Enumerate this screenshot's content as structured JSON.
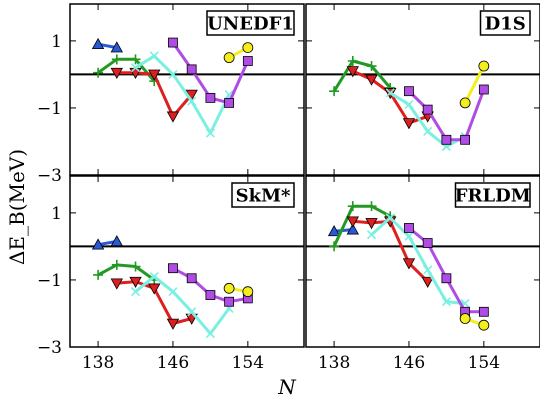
{
  "chart_data": {
    "type": "line",
    "ylabel": "ΔE_B(MeV)",
    "xlabel": "N",
    "xlim": [
      135,
      160
    ],
    "ylim": [
      -3,
      2.1
    ],
    "x_ticks": [
      138,
      146,
      154
    ],
    "x_tick_labels": [
      "138",
      "146",
      "154"
    ],
    "y_ticks": [
      1,
      -1,
      -3
    ],
    "y_tick_labels": [
      "1",
      "−1",
      "−3"
    ],
    "reference_line": 0,
    "series_styles": [
      {
        "color": "#2b59d6",
        "marker": "triangle-up"
      },
      {
        "color": "#229922",
        "marker": "plus"
      },
      {
        "color": "#dd1f1f",
        "marker": "triangle-down"
      },
      {
        "color": "#7af0e0",
        "marker": "cross"
      },
      {
        "color": "#b04ce6",
        "marker": "square"
      },
      {
        "color": "#f3ee1c",
        "marker": "circle"
      }
    ],
    "panels": [
      {
        "label": "UNEDF1",
        "series": [
          {
            "points": [
              [
                138,
                0.9
              ],
              [
                140,
                0.8
              ]
            ]
          },
          {
            "points": [
              [
                138,
                0.05
              ],
              [
                140,
                0.45
              ],
              [
                142,
                0.45
              ],
              [
                144,
                -0.2
              ]
            ]
          },
          {
            "points": [
              [
                140,
                0.05
              ],
              [
                142,
                0.05
              ],
              [
                144,
                0.0
              ],
              [
                146,
                -1.25
              ],
              [
                148,
                -0.6
              ]
            ]
          },
          {
            "points": [
              [
                142,
                0.2
              ],
              [
                144,
                0.55
              ],
              [
                146,
                0.0
              ],
              [
                148,
                -0.8
              ],
              [
                150,
                -1.75
              ],
              [
                152,
                -0.6
              ]
            ]
          },
          {
            "points": [
              [
                146,
                0.95
              ],
              [
                148,
                0.15
              ],
              [
                150,
                -0.7
              ],
              [
                152,
                -0.85
              ],
              [
                154,
                0.4
              ]
            ]
          },
          {
            "points": [
              [
                152,
                0.5
              ],
              [
                154,
                0.8
              ]
            ]
          }
        ]
      },
      {
        "label": "D1S",
        "series": [
          {
            "points": []
          },
          {
            "points": [
              [
                138,
                -0.5
              ],
              [
                140,
                0.4
              ],
              [
                142,
                0.25
              ],
              [
                144,
                -0.4
              ]
            ]
          },
          {
            "points": [
              [
                140,
                0.1
              ],
              [
                142,
                -0.15
              ],
              [
                144,
                -0.55
              ],
              [
                146,
                -1.45
              ],
              [
                148,
                -1.25
              ]
            ]
          },
          {
            "points": [
              [
                144,
                -0.55
              ],
              [
                146,
                -0.9
              ],
              [
                148,
                -1.7
              ],
              [
                150,
                -2.15
              ],
              [
                152,
                -1.85
              ]
            ]
          },
          {
            "points": [
              [
                146,
                -0.5
              ],
              [
                148,
                -1.05
              ],
              [
                150,
                -1.95
              ],
              [
                152,
                -1.95
              ],
              [
                154,
                -0.45
              ]
            ]
          },
          {
            "points": [
              [
                152,
                -0.85
              ],
              [
                154,
                0.25
              ]
            ]
          }
        ]
      },
      {
        "label": "SkM*",
        "series": [
          {
            "points": [
              [
                138,
                0.05
              ],
              [
                140,
                0.15
              ]
            ]
          },
          {
            "points": [
              [
                138,
                -0.85
              ],
              [
                140,
                -0.55
              ],
              [
                142,
                -0.6
              ],
              [
                144,
                -1.0
              ]
            ]
          },
          {
            "points": [
              [
                140,
                -1.1
              ],
              [
                142,
                -1.05
              ],
              [
                144,
                -1.25
              ],
              [
                146,
                -2.3
              ],
              [
                148,
                -2.15
              ]
            ]
          },
          {
            "points": [
              [
                142,
                -1.35
              ],
              [
                144,
                -0.9
              ],
              [
                146,
                -1.35
              ],
              [
                148,
                -1.95
              ],
              [
                150,
                -2.6
              ],
              [
                152,
                -1.85
              ]
            ]
          },
          {
            "points": [
              [
                146,
                -0.65
              ],
              [
                148,
                -0.95
              ],
              [
                150,
                -1.45
              ],
              [
                152,
                -1.65
              ],
              [
                154,
                -1.55
              ]
            ]
          },
          {
            "points": [
              [
                152,
                -1.25
              ],
              [
                154,
                -1.35
              ]
            ]
          }
        ]
      },
      {
        "label": "FRLDM",
        "series": [
          {
            "points": [
              [
                138,
                0.45
              ],
              [
                140,
                0.5
              ]
            ]
          },
          {
            "points": [
              [
                138,
                0.0
              ],
              [
                140,
                1.2
              ],
              [
                142,
                1.2
              ],
              [
                144,
                0.9
              ]
            ]
          },
          {
            "points": [
              [
                140,
                0.75
              ],
              [
                142,
                0.7
              ],
              [
                144,
                0.75
              ],
              [
                146,
                -0.5
              ],
              [
                148,
                -1.05
              ]
            ]
          },
          {
            "points": [
              [
                142,
                0.35
              ],
              [
                144,
                0.85
              ],
              [
                146,
                0.3
              ],
              [
                148,
                -0.7
              ],
              [
                150,
                -1.65
              ],
              [
                152,
                -1.7
              ]
            ]
          },
          {
            "points": [
              [
                146,
                0.55
              ],
              [
                148,
                0.1
              ],
              [
                150,
                -0.95
              ],
              [
                152,
                -1.95
              ],
              [
                154,
                -1.95
              ]
            ]
          },
          {
            "points": [
              [
                152,
                -2.15
              ],
              [
                154,
                -2.35
              ]
            ]
          }
        ]
      }
    ]
  }
}
